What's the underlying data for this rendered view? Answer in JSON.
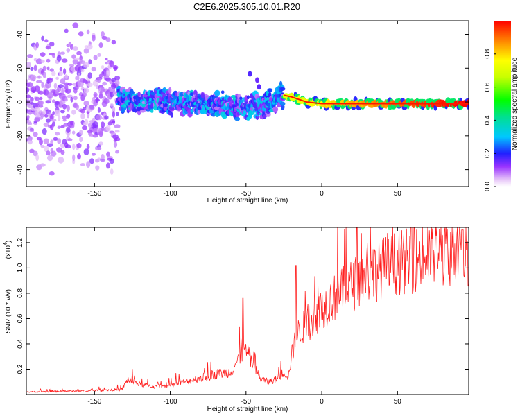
{
  "title": "C2E6.2025.305.10.01.R20",
  "chart_data": [
    {
      "type": "heatmap",
      "name": "spectrogram",
      "xlabel": "Height of straight line (km)",
      "ylabel": "Frequency (Hz)",
      "xlim": [
        -195,
        97
      ],
      "ylim": [
        -50,
        48
      ],
      "xticks": [
        -150,
        -100,
        -50,
        0,
        50
      ],
      "xtick_labels": [
        "-150",
        "-100",
        "-50",
        "0",
        "50"
      ],
      "yticks": [
        -40,
        -20,
        0,
        20,
        40
      ],
      "ytick_labels": [
        "-40",
        "-20",
        "0",
        "20",
        "40"
      ],
      "colorbar": {
        "label": "Normalized spectral amplitude",
        "range": [
          0,
          1
        ],
        "ticks": [
          0.0,
          0.2,
          0.4,
          0.6,
          0.8
        ],
        "tick_labels": [
          "0.0",
          "0.2",
          "0.4",
          "0.6",
          "0.8"
        ]
      },
      "ridge": {
        "x": [
          -195,
          -150,
          -130,
          -100,
          -70,
          -50,
          -40,
          -30,
          -25,
          -20,
          -10,
          0,
          20,
          50,
          90,
          97
        ],
        "freq_hz": [
          0,
          1,
          1,
          0,
          -1,
          -3,
          -2,
          2,
          4,
          3,
          0,
          -1,
          -1,
          -1,
          -1,
          -1
        ],
        "description": "energy concentrated near 0 Hz, broad scatter below -130 km, narrow high-amplitude line above -25 km"
      }
    },
    {
      "type": "line",
      "name": "snr",
      "xlabel": "Height of straight line (km)",
      "ylabel": "SNR (10 * v/v)",
      "y_multiplier_label": "(x10",
      "y_multiplier_exp": "4",
      "y_multiplier_close": ")",
      "xlim": [
        -195,
        97
      ],
      "ylim": [
        0,
        1.32
      ],
      "xticks": [
        -150,
        -100,
        -50,
        0,
        50
      ],
      "xtick_labels": [
        "-150",
        "-100",
        "-50",
        "0",
        "50"
      ],
      "yticks": [
        0.2,
        0.4,
        0.6,
        0.8,
        1.0,
        1.2
      ],
      "ytick_labels": [
        "0.2",
        "0.4",
        "0.6",
        "0.8",
        "1.0",
        "1.2"
      ],
      "color": "#ff2020",
      "series": [
        {
          "name": "SNR",
          "x": [
            -195,
            -150,
            -132,
            -128,
            -120,
            -110,
            -100,
            -90,
            -80,
            -70,
            -60,
            -55,
            -50,
            -45,
            -40,
            -35,
            -30,
            -25,
            -22,
            -20,
            -18,
            -15,
            -10,
            -5,
            0,
            10,
            20,
            30,
            40,
            50,
            60,
            70,
            80,
            90,
            97
          ],
          "y": [
            0.02,
            0.03,
            0.04,
            0.12,
            0.08,
            0.06,
            0.07,
            0.1,
            0.13,
            0.16,
            0.18,
            0.28,
            0.35,
            0.22,
            0.12,
            0.1,
            0.12,
            0.18,
            0.14,
            0.3,
            0.4,
            0.5,
            0.55,
            0.6,
            0.68,
            0.78,
            0.86,
            0.95,
            1.0,
            1.04,
            1.06,
            1.09,
            1.12,
            1.14,
            1.12
          ],
          "peak_spikes": [
            {
              "x": -52,
              "y": 0.76
            },
            {
              "x": -17,
              "y": 1.02
            },
            {
              "x": 93,
              "y": 1.3
            }
          ]
        }
      ]
    }
  ]
}
